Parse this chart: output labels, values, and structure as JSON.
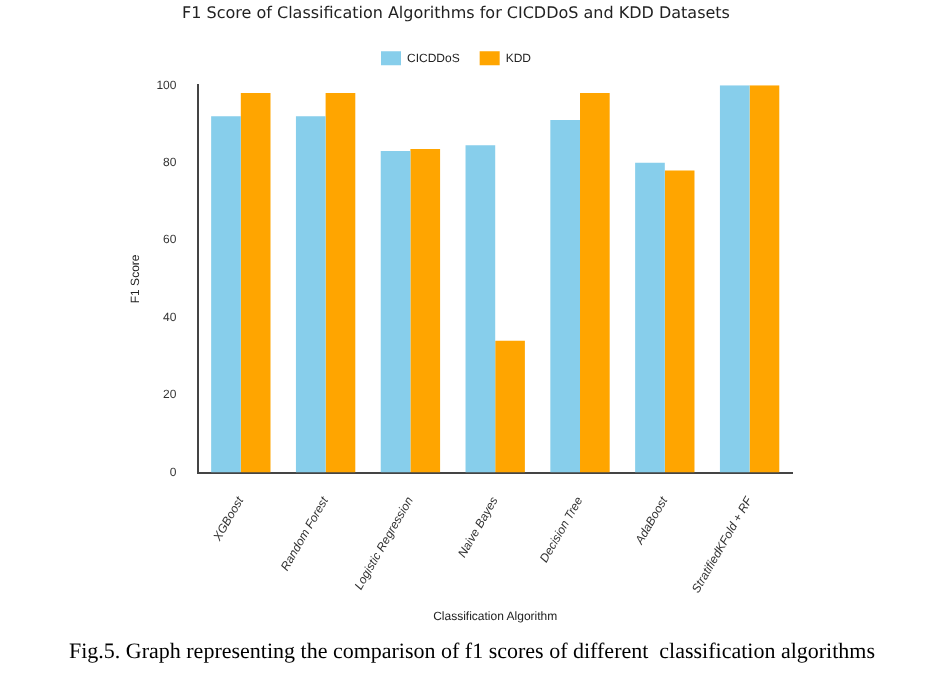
{
  "chart_data": {
    "type": "bar",
    "title": "F1 Score of Classification Algorithms for CICDDoS and KDD Datasets",
    "xlabel": "Classification Algorithm",
    "ylabel": "F1 Score",
    "categories": [
      "XGBoost",
      "Random Forest",
      "Logistic Regression",
      "Naive Bayes",
      "Decision Tree",
      "AdaBoost",
      "StratifiedKFold + RF"
    ],
    "series": [
      {
        "name": "CICDDoS",
        "color": "#87ceeb",
        "values": [
          92,
          92,
          83,
          84.5,
          91,
          80,
          100
        ]
      },
      {
        "name": "KDD",
        "color": "#ffa500",
        "values": [
          98,
          98,
          83.5,
          34,
          98,
          78,
          100
        ]
      }
    ],
    "ylim": [
      0,
      100
    ],
    "yticks": [
      0,
      20,
      40,
      60,
      80,
      100
    ],
    "grid": false,
    "legend": "top",
    "annotations": [
      "Fig.5. Graph representing the comparison of f1 scores of different  classification algorithms"
    ]
  }
}
